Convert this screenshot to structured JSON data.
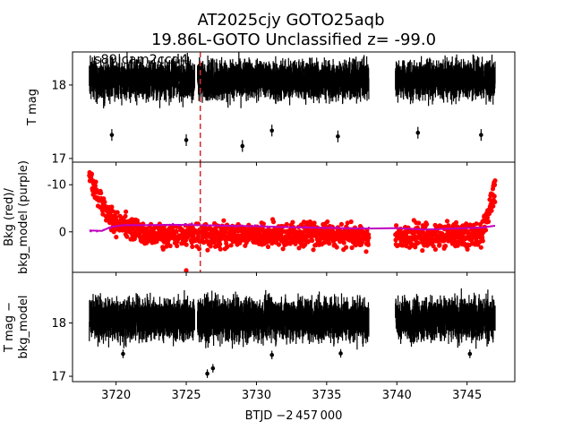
{
  "title": {
    "line1": "AT2025cjy  GOTO25aqb",
    "line2": "19.86L-GOTO Unclassified z= -99.0"
  },
  "xlabel": "BTJD −2 457 000",
  "colors": {
    "flux": "#000000",
    "bkg": "#ff0000",
    "bkg_model": "#bf00bf",
    "marker": "#d62728"
  },
  "chart_data": [
    {
      "type": "scatter",
      "name_label": "s89 cam2ccd4",
      "ylabel": "T mag",
      "ylim": [
        18.45,
        16.95
      ],
      "yticks": [
        17,
        18
      ],
      "xlim": [
        3716.9,
        3748.4
      ],
      "xticks": [
        3720,
        3725,
        3730,
        3735,
        3740,
        3745
      ],
      "segments": [
        [
          3718.1,
          3725.6
        ],
        [
          3725.8,
          3738.0
        ],
        [
          3739.9,
          3747.0
        ]
      ],
      "series": [
        {
          "band_center": 18.07,
          "band_halfwidth": 0.3,
          "errorbars": true
        }
      ],
      "vertical_marker_x": 3726.0
    },
    {
      "type": "scatter",
      "ylabel": "Bkg (red)/\nbkg_model (purple)",
      "ylim": [
        -14.8,
        8.6
      ],
      "yticks": [
        -10,
        0
      ],
      "xlim": [
        3716.9,
        3748.4
      ],
      "segments": [
        [
          3718.1,
          3738.0
        ],
        [
          3739.9,
          3747.0
        ]
      ],
      "series": [
        {
          "kind": "bkg",
          "plateau": 0.8,
          "spread": 4.5
        },
        {
          "kind": "bkg_model",
          "x": [
            3718.1,
            3719.0,
            3719.6,
            3720.5,
            3722.0,
            3724.0,
            3726.0,
            3728.0,
            3730.0,
            3732.0,
            3734.0,
            3736.0,
            3738.0,
            3740.0,
            3742.0,
            3744.0,
            3746.0,
            3747.0
          ],
          "y": [
            -0.3,
            -0.2,
            -1.0,
            -1.4,
            -1.4,
            -1.5,
            -1.4,
            -1.3,
            -1.2,
            -1.0,
            -0.9,
            -0.8,
            -0.7,
            -0.8,
            -0.5,
            -0.7,
            -0.9,
            -1.3
          ]
        }
      ]
    },
    {
      "type": "scatter",
      "ylabel": "T mag −\nbkg_model",
      "ylim": [
        18.95,
        16.9
      ],
      "yticks": [
        17,
        18
      ],
      "xlim": [
        3716.9,
        3748.4
      ],
      "xticks": [
        3720,
        3725,
        3730,
        3735,
        3740,
        3745
      ],
      "segments": [
        [
          3718.1,
          3725.6
        ],
        [
          3725.8,
          3738.0
        ],
        [
          3739.9,
          3747.0
        ]
      ],
      "series": [
        {
          "band_center": 18.07,
          "band_halfwidth": 0.45,
          "errorbars": true
        }
      ]
    }
  ]
}
